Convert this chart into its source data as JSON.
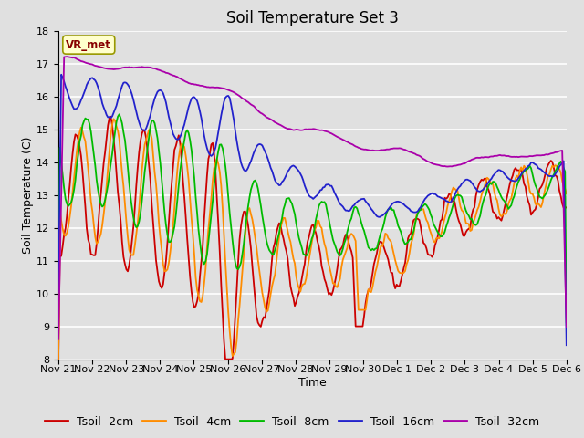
{
  "title": "Soil Temperature Set 3",
  "xlabel": "Time",
  "ylabel": "Soil Temperature (C)",
  "ylim": [
    8.0,
    18.0
  ],
  "yticks": [
    8.0,
    9.0,
    10.0,
    11.0,
    12.0,
    13.0,
    14.0,
    15.0,
    16.0,
    17.0,
    18.0
  ],
  "background_color": "#e0e0e0",
  "plot_bg_color": "#e0e0e0",
  "grid_color": "#ffffff",
  "series_colors": [
    "#cc0000",
    "#ff8c00",
    "#00bb00",
    "#2222cc",
    "#aa00aa"
  ],
  "series_labels": [
    "Tsoil -2cm",
    "Tsoil -4cm",
    "Tsoil -8cm",
    "Tsoil -16cm",
    "Tsoil -32cm"
  ],
  "x_tick_labels": [
    "Nov 21",
    "Nov 22",
    "Nov 23",
    "Nov 24",
    "Nov 25",
    "Nov 26",
    "Nov 27",
    "Nov 28",
    "Nov 29",
    "Nov 30",
    "Dec 1",
    "Dec 2",
    "Dec 3",
    "Dec 4",
    "Dec 5",
    "Dec 6"
  ],
  "station_label": "VR_met",
  "title_fontsize": 12,
  "axis_label_fontsize": 9,
  "tick_fontsize": 8,
  "legend_fontsize": 9
}
